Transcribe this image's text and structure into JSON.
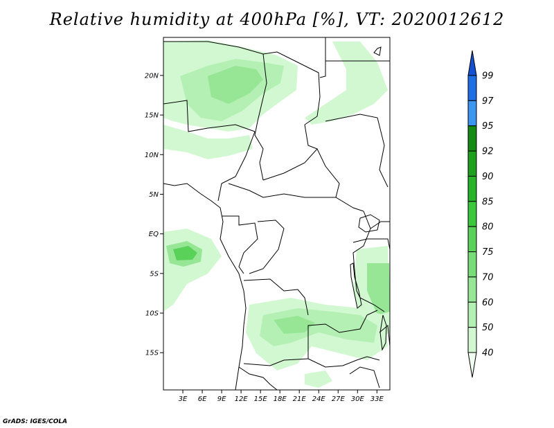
{
  "title": "Relative humidity at 400hPa [%], VT: 2020012612",
  "credit": "GrADS: IGES/COLA",
  "map": {
    "lat_labels": [
      {
        "lat": 20,
        "label": "20N"
      },
      {
        "lat": 15,
        "label": "15N"
      },
      {
        "lat": 10,
        "label": "10N"
      },
      {
        "lat": 5,
        "label": "5N"
      },
      {
        "lat": 0,
        "label": "EQ"
      },
      {
        "lat": -5,
        "label": "5S"
      },
      {
        "lat": -10,
        "label": "10S"
      },
      {
        "lat": -15,
        "label": "15S"
      }
    ],
    "lon_labels": [
      {
        "lon": 3,
        "label": "3E"
      },
      {
        "lon": 6,
        "label": "6E"
      },
      {
        "lon": 9,
        "label": "9E"
      },
      {
        "lon": 12,
        "label": "12E"
      },
      {
        "lon": 15,
        "label": "15E"
      },
      {
        "lon": 18,
        "label": "18E"
      },
      {
        "lon": 21,
        "label": "21E"
      },
      {
        "lon": 24,
        "label": "24E"
      },
      {
        "lon": 27,
        "label": "27E"
      },
      {
        "lon": 30,
        "label": "30E"
      },
      {
        "lon": 33,
        "label": "33E"
      }
    ]
  },
  "colorbar": {
    "levels": [
      "40",
      "50",
      "60",
      "70",
      "75",
      "80",
      "85",
      "90",
      "92",
      "95",
      "97",
      "99"
    ],
    "colors": [
      "#f0fff0",
      "#d2f8d2",
      "#b4f0b4",
      "#96e696",
      "#78dc78",
      "#5ad25a",
      "#3cc83c",
      "#28b428",
      "#1ea01e",
      "#148c14",
      "#3c96f0",
      "#1e6ee6",
      "#1450d2"
    ]
  }
}
